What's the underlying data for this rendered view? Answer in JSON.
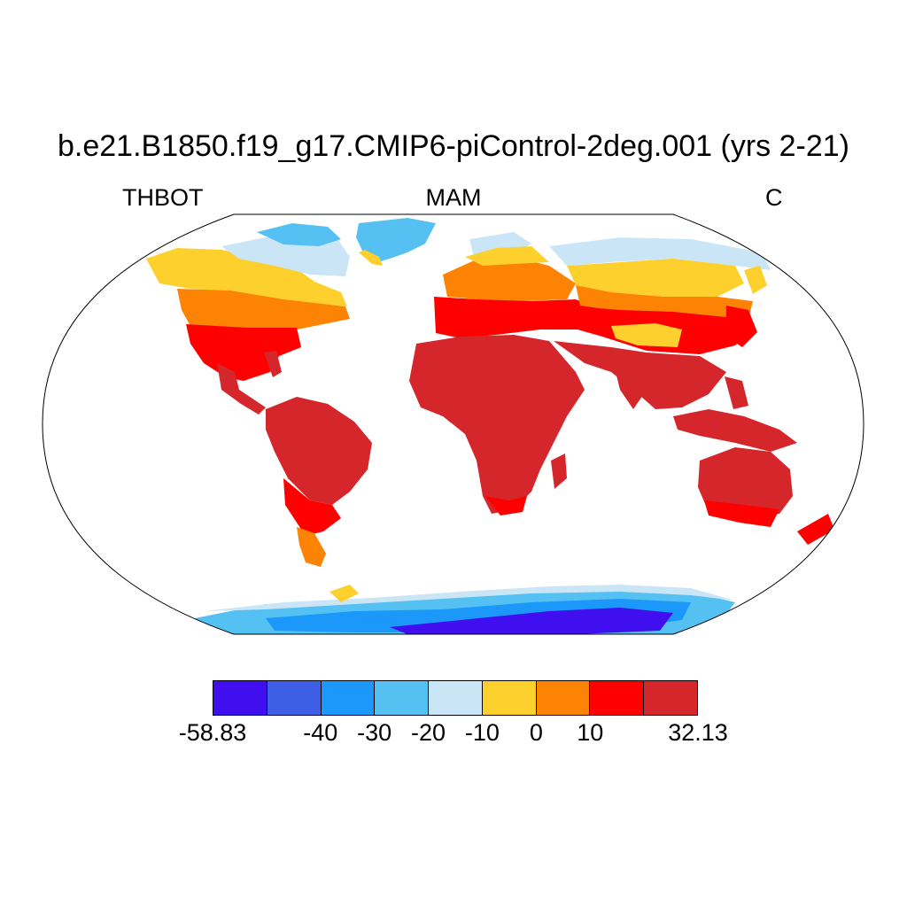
{
  "title": "b.e21.B1850.f19_g17.CMIP6-piControl-2deg.001 (yrs 2-21)",
  "subtitle_left": "THBOT",
  "subtitle_center": "MAM",
  "subtitle_right": "C",
  "colorbar": {
    "colors": [
      "#3f0ff0",
      "#3e5ee6",
      "#1c97fa",
      "#55c0f2",
      "#cae6f6",
      "#fdd02e",
      "#fd8304",
      "#fe0000",
      "#d5262b"
    ],
    "labels": [
      {
        "text": "-58.83",
        "boundary": 0
      },
      {
        "text": "-40",
        "boundary": 2
      },
      {
        "text": "-30",
        "boundary": 3
      },
      {
        "text": "-20",
        "boundary": 4
      },
      {
        "text": "-10",
        "boundary": 5
      },
      {
        "text": "0",
        "boundary": 6
      },
      {
        "text": "10",
        "boundary": 7
      },
      {
        "text": "32.13",
        "boundary": 9
      }
    ]
  },
  "map": {
    "projection": "Robinson",
    "variable": "THBOT",
    "season": "MAM",
    "units": "C",
    "min": -58.83,
    "max": 32.13
  }
}
